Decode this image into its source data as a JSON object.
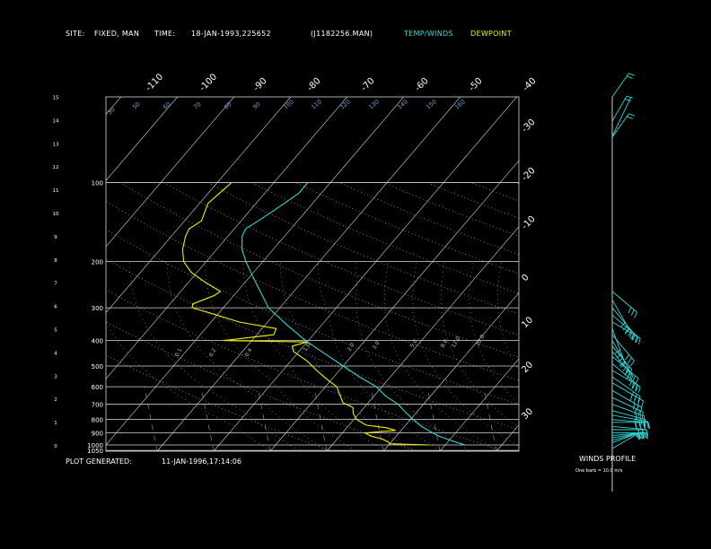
{
  "header": {
    "site_label": "SITE:",
    "site_value": "FIXED, MAN",
    "time_label": "TIME:",
    "time_value": "18-JAN-1993,225652",
    "file_id": "(J1182256.MAN)",
    "temp_winds_legend": "TEMP/WINDS",
    "dewpoint_legend": "DEWPOINT"
  },
  "footer": {
    "generated_label": "PLOT GENERATED:",
    "generated_value": "11-JAN-1996,17:14:06"
  },
  "winds_panel": {
    "title": "WINDS PROFILE",
    "subtitle": "One barb = 10.0 m/s"
  },
  "colors": {
    "temp_winds": "#33d6d6",
    "dewpoint": "#f0f000",
    "grid": "#d8d8d8",
    "dry_adiabat": "#e0a060",
    "moist_adiabat": "#8fa0d0"
  },
  "chart_data": {
    "type": "line",
    "pressure_levels": [
      1050,
      1000,
      900,
      800,
      700,
      600,
      500,
      400,
      300,
      200,
      100
    ],
    "pressure_labels": [
      "1050",
      "1000",
      "900",
      "800",
      "700",
      "600",
      "500",
      "400",
      "300",
      "200",
      "100"
    ],
    "height_km_ticks": [
      "0",
      "1",
      "2",
      "3",
      "4",
      "5",
      "6",
      "7",
      "8",
      "9",
      "10",
      "11",
      "12",
      "13",
      "14",
      "15"
    ],
    "temp_ticks_top": [
      "-110",
      "-100",
      "-90",
      "-80",
      "-70",
      "-60",
      "-50",
      "-40"
    ],
    "temp_ticks_right": [
      "-30",
      "-20",
      "-10",
      "0",
      "10",
      "20",
      "30"
    ],
    "theta_labels": [
      "30",
      "50",
      "60",
      "70",
      "80",
      "90",
      "100",
      "110",
      "120",
      "130",
      "140",
      "150",
      "160"
    ],
    "mixing_ratio_labels": [
      "0.1",
      "0.2",
      "0.4",
      "1.0",
      "2.0",
      "3.0",
      "5.0",
      "8.0",
      "12.0",
      "20.0"
    ],
    "series": [
      {
        "name": "TEMP/WINDS",
        "points": [
          {
            "p": 1000,
            "t": 3.5
          },
          {
            "p": 970,
            "t": 1.0
          },
          {
            "p": 925,
            "t": -2.5
          },
          {
            "p": 900,
            "t": -4.0
          },
          {
            "p": 850,
            "t": -7.0
          },
          {
            "p": 800,
            "t": -9.5
          },
          {
            "p": 750,
            "t": -12.0
          },
          {
            "p": 700,
            "t": -14.5
          },
          {
            "p": 650,
            "t": -18.0
          },
          {
            "p": 600,
            "t": -21.0
          },
          {
            "p": 550,
            "t": -25.5
          },
          {
            "p": 500,
            "t": -30.0
          },
          {
            "p": 450,
            "t": -35.0
          },
          {
            "p": 400,
            "t": -40.5
          },
          {
            "p": 350,
            "t": -46.0
          },
          {
            "p": 300,
            "t": -52.0
          },
          {
            "p": 250,
            "t": -57.0
          },
          {
            "p": 220,
            "t": -60.5
          },
          {
            "p": 200,
            "t": -63.0
          },
          {
            "p": 180,
            "t": -65.5
          },
          {
            "p": 160,
            "t": -67.5
          },
          {
            "p": 150,
            "t": -68.0
          },
          {
            "p": 140,
            "t": -67.0
          },
          {
            "p": 130,
            "t": -66.0
          },
          {
            "p": 120,
            "t": -65.0
          },
          {
            "p": 110,
            "t": -64.0
          },
          {
            "p": 100,
            "t": -64.0
          }
        ]
      },
      {
        "name": "DEWPOINT",
        "points": [
          {
            "p": 1000,
            "t": -3.0
          },
          {
            "p": 990,
            "t": -10.0
          },
          {
            "p": 975,
            "t": -10.5
          },
          {
            "p": 950,
            "t": -12.0
          },
          {
            "p": 925,
            "t": -14.5
          },
          {
            "p": 900,
            "t": -16.0
          },
          {
            "p": 880,
            "t": -11.0
          },
          {
            "p": 860,
            "t": -13.0
          },
          {
            "p": 840,
            "t": -17.0
          },
          {
            "p": 800,
            "t": -19.5
          },
          {
            "p": 760,
            "t": -21.0
          },
          {
            "p": 720,
            "t": -22.0
          },
          {
            "p": 690,
            "t": -24.5
          },
          {
            "p": 650,
            "t": -26.0
          },
          {
            "p": 600,
            "t": -28.0
          },
          {
            "p": 560,
            "t": -31.0
          },
          {
            "p": 520,
            "t": -34.0
          },
          {
            "p": 480,
            "t": -37.0
          },
          {
            "p": 440,
            "t": -41.0
          },
          {
            "p": 420,
            "t": -42.0
          },
          {
            "p": 405,
            "t": -40.0
          },
          {
            "p": 400,
            "t": -55.0
          },
          {
            "p": 380,
            "t": -47.0
          },
          {
            "p": 360,
            "t": -47.5
          },
          {
            "p": 340,
            "t": -55.0
          },
          {
            "p": 320,
            "t": -60.0
          },
          {
            "p": 300,
            "t": -65.5
          },
          {
            "p": 290,
            "t": -66.0
          },
          {
            "p": 270,
            "t": -63.5
          },
          {
            "p": 260,
            "t": -63.0
          },
          {
            "p": 240,
            "t": -67.0
          },
          {
            "p": 220,
            "t": -71.0
          },
          {
            "p": 200,
            "t": -74.0
          },
          {
            "p": 180,
            "t": -76.0
          },
          {
            "p": 160,
            "t": -77.5
          },
          {
            "p": 150,
            "t": -78.0
          },
          {
            "p": 140,
            "t": -77.0
          },
          {
            "p": 120,
            "t": -78.5
          },
          {
            "p": 100,
            "t": -77.5
          }
        ]
      }
    ],
    "winds": [
      {
        "p": 1000,
        "dir": 240,
        "spd": 10
      },
      {
        "p": 980,
        "dir": 250,
        "spd": 20
      },
      {
        "p": 960,
        "dir": 255,
        "spd": 20
      },
      {
        "p": 940,
        "dir": 260,
        "spd": 25
      },
      {
        "p": 920,
        "dir": 265,
        "spd": 25
      },
      {
        "p": 900,
        "dir": 270,
        "spd": 30
      },
      {
        "p": 875,
        "dir": 270,
        "spd": 30
      },
      {
        "p": 850,
        "dir": 275,
        "spd": 30
      },
      {
        "p": 820,
        "dir": 270,
        "spd": 35
      },
      {
        "p": 800,
        "dir": 275,
        "spd": 35
      },
      {
        "p": 770,
        "dir": 280,
        "spd": 35
      },
      {
        "p": 740,
        "dir": 285,
        "spd": 30
      },
      {
        "p": 700,
        "dir": 290,
        "spd": 30
      },
      {
        "p": 660,
        "dir": 295,
        "spd": 30
      },
      {
        "p": 620,
        "dir": 300,
        "spd": 30
      },
      {
        "p": 580,
        "dir": 300,
        "spd": 35
      },
      {
        "p": 550,
        "dir": 305,
        "spd": 30
      },
      {
        "p": 520,
        "dir": 300,
        "spd": 25
      },
      {
        "p": 490,
        "dir": 310,
        "spd": 30
      },
      {
        "p": 460,
        "dir": 310,
        "spd": 30
      },
      {
        "p": 440,
        "dir": 320,
        "spd": 25
      },
      {
        "p": 420,
        "dir": 320,
        "spd": 20
      },
      {
        "p": 400,
        "dir": 330,
        "spd": 30
      },
      {
        "p": 380,
        "dir": 320,
        "spd": 30
      },
      {
        "p": 360,
        "dir": 340,
        "spd": 35
      },
      {
        "p": 340,
        "dir": 300,
        "spd": 25
      },
      {
        "p": 320,
        "dir": 310,
        "spd": 30
      },
      {
        "p": 300,
        "dir": 320,
        "spd": 30
      },
      {
        "p": 280,
        "dir": 330,
        "spd": 30
      },
      {
        "p": 260,
        "dir": 310,
        "spd": 25
      },
      {
        "p": 150,
        "dir": 215,
        "spd": 15
      },
      {
        "p": 120,
        "dir": 210,
        "spd": 15
      },
      {
        "p": 100,
        "dir": 215,
        "spd": 15
      }
    ]
  }
}
